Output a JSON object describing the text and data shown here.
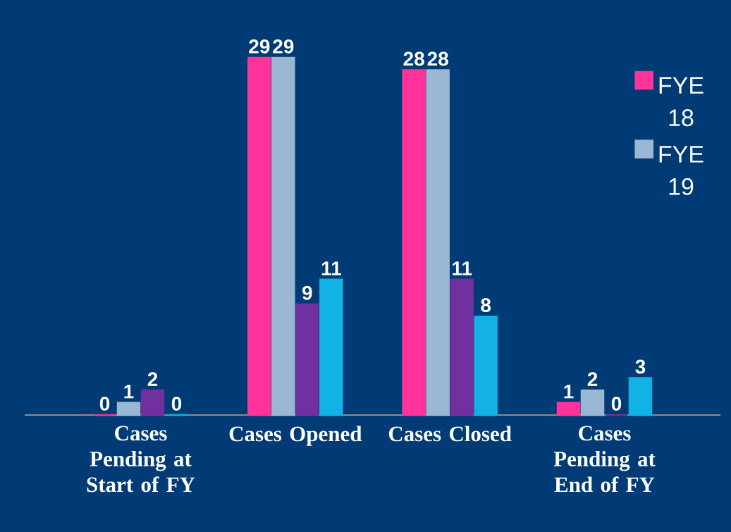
{
  "chart_data": {
    "type": "bar",
    "categories": [
      "Cases Pending at Start of FY",
      "Cases Opened",
      "Cases Closed",
      "Cases Pending at End of FY"
    ],
    "series": [
      {
        "name": "FYE 18",
        "color": "#ff3399",
        "values": [
          0,
          29,
          28,
          1
        ]
      },
      {
        "name": "FYE 19",
        "color": "#9ab7d3",
        "values": [
          1,
          29,
          28,
          2
        ]
      },
      {
        "color": "#7030a0",
        "values": [
          2,
          9,
          11,
          0
        ]
      },
      {
        "color": "#12b2e6",
        "values": [
          0,
          11,
          8,
          3
        ]
      }
    ],
    "data_labels": true,
    "legend": "top right"
  }
}
